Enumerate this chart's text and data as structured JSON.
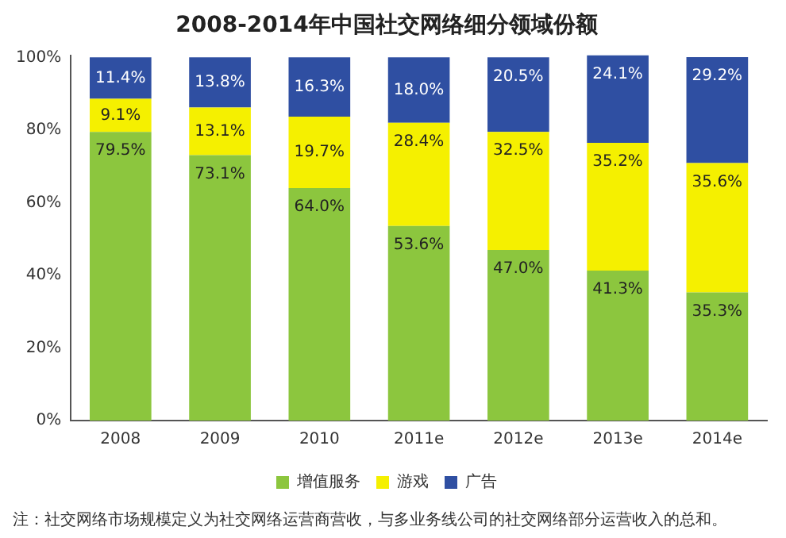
{
  "chart_data": {
    "type": "bar",
    "title": "2008-2014年中国社交网络细分领域份额",
    "stacked": true,
    "categories": [
      "2008",
      "2009",
      "2010",
      "2011e",
      "2012e",
      "2013e",
      "2014e"
    ],
    "series": [
      {
        "name": "增值服务",
        "color": "#8cc63e",
        "values": [
          79.5,
          73.1,
          64.0,
          53.6,
          47.0,
          41.3,
          35.3
        ],
        "value_labels": [
          "79.5%",
          "73.1%",
          "64.0%",
          "53.6%",
          "47.0%",
          "41.3%",
          "35.3%"
        ]
      },
      {
        "name": "游戏",
        "color": "#f5f000",
        "values": [
          9.1,
          13.1,
          19.7,
          28.4,
          32.5,
          35.2,
          35.6
        ],
        "value_labels": [
          "9.1%",
          "13.1%",
          "19.7%",
          "28.4%",
          "32.5%",
          "35.2%",
          "35.6%"
        ]
      },
      {
        "name": "广告",
        "color": "#2f4fa2",
        "values": [
          11.4,
          13.8,
          16.3,
          18.0,
          20.5,
          24.1,
          29.2
        ],
        "value_labels": [
          "11.4%",
          "13.8%",
          "16.3%",
          "18.0%",
          "20.5%",
          "24.1%",
          "29.2%"
        ]
      }
    ],
    "ylim": [
      0,
      100.6
    ],
    "yticks": [
      {
        "value": 0,
        "label": "0%"
      },
      {
        "value": 20,
        "label": "20%"
      },
      {
        "value": 40,
        "label": "40%"
      },
      {
        "value": 60,
        "label": "60%"
      },
      {
        "value": 80,
        "label": "80%"
      },
      {
        "value": 100,
        "label": "100%"
      }
    ],
    "grid": false,
    "legend": "bottom",
    "annotations": [
      "注：社交网络市场规模定义为社交网络运营商营收，与多业务线公司的社交网络部分运营收入的总和。"
    ]
  }
}
